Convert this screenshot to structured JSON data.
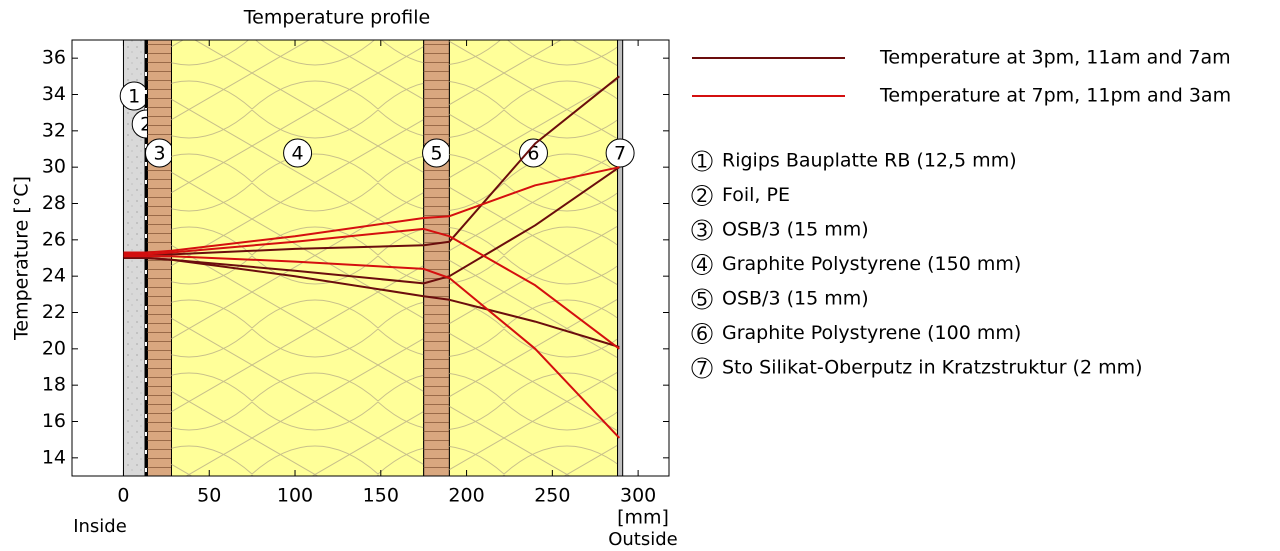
{
  "chart_data": {
    "type": "line",
    "title": "Temperature profile",
    "y_label": "Temperature  [°C]",
    "x_label": "[mm]",
    "x_left_label": "Inside",
    "x_right_label": "Outside",
    "xlim": [
      -30,
      318
    ],
    "ylim": [
      13,
      37
    ],
    "xticks": [
      0,
      50,
      100,
      150,
      200,
      250,
      300
    ],
    "yticks": [
      14,
      16,
      18,
      20,
      22,
      24,
      26,
      28,
      30,
      32,
      34,
      36
    ],
    "x": [
      0,
      14,
      28,
      100,
      175,
      190,
      240,
      289
    ],
    "series": [
      {
        "name": "Temperature at 3pm, 11am and 7am",
        "color": "#6b0d0d",
        "curves": [
          [
            25.2,
            25.2,
            25.2,
            25.5,
            25.7,
            25.9,
            31.3,
            35.0
          ],
          [
            25.0,
            25.0,
            24.9,
            24.3,
            23.6,
            24.0,
            26.8,
            30.0
          ],
          [
            25.0,
            25.0,
            24.9,
            24.0,
            22.9,
            22.7,
            21.5,
            20.1
          ]
        ]
      },
      {
        "name": "Temperature at 7pm, 11pm and 3am",
        "color": "#d40f0f",
        "curves": [
          [
            25.3,
            25.3,
            25.4,
            26.2,
            27.2,
            27.3,
            29.0,
            30.0
          ],
          [
            25.2,
            25.2,
            25.3,
            25.9,
            26.6,
            26.2,
            23.5,
            20.0
          ],
          [
            25.1,
            25.1,
            25.1,
            24.8,
            24.4,
            23.9,
            20.0,
            15.1
          ]
        ]
      }
    ],
    "layers": [
      {
        "label": "1",
        "name": "Rigips Bauplatte RB (12,5 mm)",
        "from": 0,
        "to": 12.5,
        "fill": "#d9d9d9",
        "hatch": "dots"
      },
      {
        "label": "2",
        "name": "Foil, PE",
        "from": 12.5,
        "to": 14,
        "fill": "#000000",
        "hatch": "dash"
      },
      {
        "label": "3",
        "name": "OSB/3 (15 mm)",
        "from": 14,
        "to": 28,
        "fill": "#d9a77f",
        "hatch": "planks"
      },
      {
        "label": "4",
        "name": "Graphite Polystyrene (150 mm)",
        "from": 28,
        "to": 175,
        "fill": "#ffff99",
        "hatch": "insulation"
      },
      {
        "label": "5",
        "name": "OSB/3 (15 mm)",
        "from": 175,
        "to": 190,
        "fill": "#d9a77f",
        "hatch": "planks"
      },
      {
        "label": "6",
        "name": "Graphite Polystyrene (100 mm)",
        "from": 190,
        "to": 288,
        "fill": "#ffff99",
        "hatch": "insulation"
      },
      {
        "label": "7",
        "name": "Sto Silikat-Oberputz in Kratzstruktur (2 mm)",
        "from": 288,
        "to": 291,
        "fill": "#bfbfbf",
        "hatch": "none"
      }
    ]
  }
}
